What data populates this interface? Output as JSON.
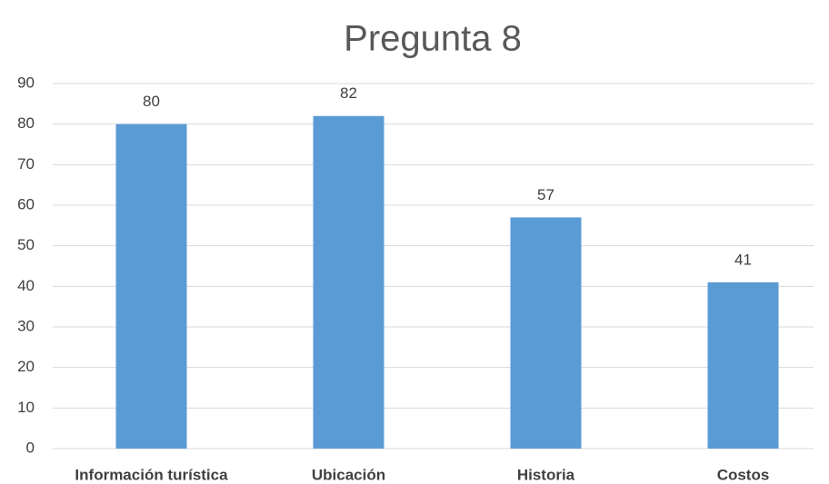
{
  "chart_data": {
    "type": "bar",
    "title": "Pregunta 8",
    "categories": [
      "Información turística",
      "Ubicación",
      "Historia",
      "Costos"
    ],
    "values": [
      80,
      82,
      57,
      41
    ],
    "color": "#5b9bd5",
    "ylim": [
      0,
      90
    ],
    "yticks": [
      0,
      10,
      20,
      30,
      40,
      50,
      60,
      70,
      80,
      90
    ],
    "grid": true
  }
}
